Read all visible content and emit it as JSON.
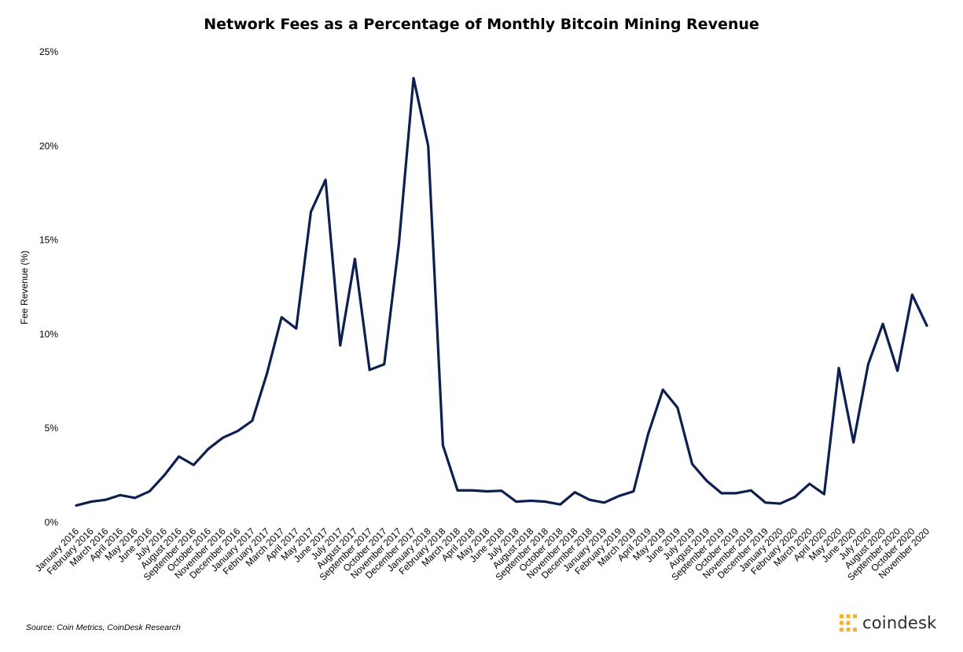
{
  "chart_data": {
    "type": "line",
    "title": "Network Fees as a Percentage of Monthly Bitcoin Mining Revenue",
    "xlabel": "",
    "ylabel": "Fee Revenue (%)",
    "ylim": [
      0,
      25
    ],
    "y_ticks": [
      "0%",
      "5%",
      "10%",
      "15%",
      "20%",
      "25%"
    ],
    "grid": false,
    "legend": "none",
    "line_color": "#0d1f4f",
    "categories": [
      "January 2016",
      "February 2016",
      "March 2016",
      "April 2016",
      "May 2016",
      "June 2016",
      "July 2016",
      "August 2016",
      "September 2016",
      "October 2016",
      "November 2016",
      "December 2016",
      "January 2017",
      "February 2017",
      "March 2017",
      "April 2017",
      "May 2017",
      "June 2017",
      "July 2017",
      "August 2017",
      "September 2017",
      "October 2017",
      "November 2017",
      "December 2017",
      "January 2018",
      "February 2018",
      "March 2018",
      "April 2018",
      "May 2018",
      "June 2018",
      "July 2018",
      "August 2018",
      "September 2018",
      "October 2018",
      "November 2018",
      "December 2018",
      "January 2019",
      "February 2019",
      "March 2019",
      "April 2019",
      "May 2019",
      "June 2019",
      "July 2019",
      "August 2019",
      "September 2019",
      "October 2019",
      "November 2019",
      "December 2019",
      "January 2020",
      "February 2020",
      "March 2020",
      "April 2020",
      "May 2020",
      "June 2020",
      "July 2020",
      "August 2020",
      "September 2020",
      "October 2020",
      "November 2020"
    ],
    "series": [
      {
        "values": [
          0.9,
          1.1,
          1.2,
          1.45,
          1.3,
          1.65,
          2.5,
          3.5,
          3.05,
          3.9,
          4.5,
          4.85,
          5.4,
          7.9,
          10.9,
          10.3,
          16.5,
          18.2,
          9.4,
          14.0,
          8.1,
          8.4,
          14.8,
          23.6,
          20.0,
          4.1,
          1.7,
          1.7,
          1.65,
          1.68,
          1.1,
          1.15,
          1.1,
          0.95,
          1.6,
          1.2,
          1.05,
          1.4,
          1.65,
          4.7,
          7.05,
          6.1,
          3.1,
          2.2,
          1.55,
          1.55,
          1.7,
          1.05,
          1.0,
          1.35,
          2.05,
          1.5,
          8.2,
          4.25,
          8.4,
          10.55,
          8.05,
          12.1,
          10.45
        ]
      }
    ]
  },
  "source": "Source: Coin Metrics, CoinDesk Research",
  "brand": {
    "name": "coindesk",
    "logo_icon": "coindesk-logo-icon",
    "logo_color": "#f5b335"
  }
}
